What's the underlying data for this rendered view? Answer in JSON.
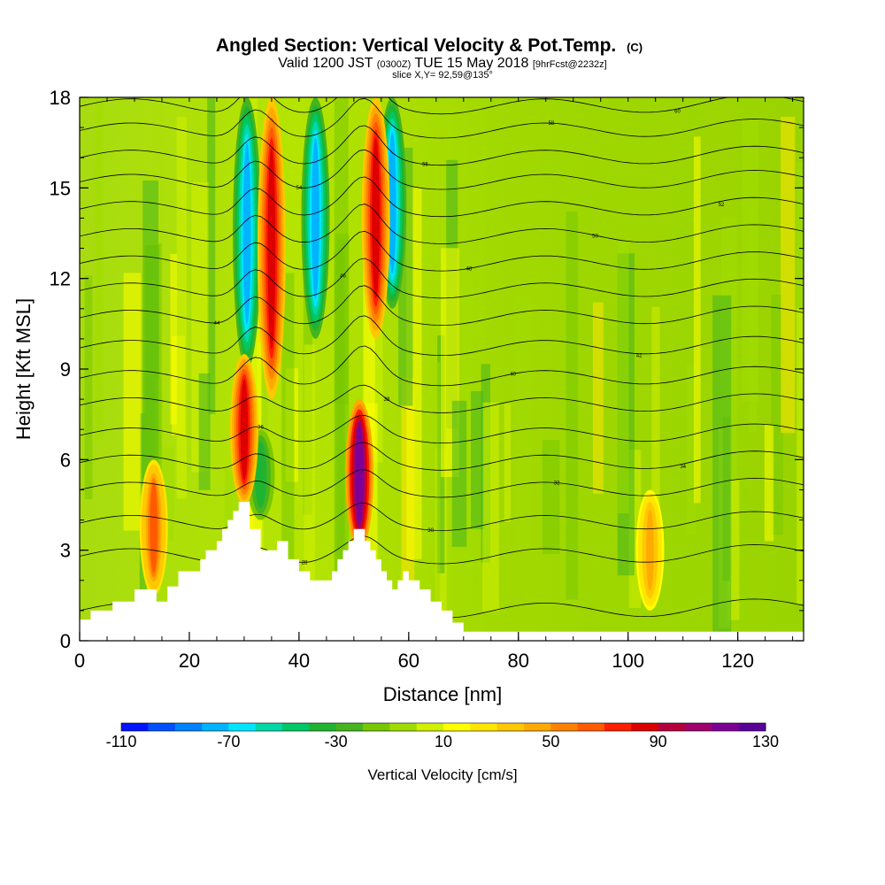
{
  "title": {
    "main": "Angled Section: Vertical Velocity & Pot.Temp.",
    "main_suffix": "(C)",
    "valid_prefix": "Valid 1200 JST",
    "valid_zulu": "(0300Z)",
    "valid_date": "TUE 15 May 2018",
    "valid_fcst": "[9hrFcst@2232z]",
    "slice": "slice X,Y= 92,59@135°"
  },
  "chart_data": {
    "type": "heatmap",
    "title": "Angled Section: Vertical Velocity & Pot.Temp.",
    "xlabel": "Distance [nm]",
    "ylabel": "Height [Kft MSL]",
    "xlim": [
      0,
      132
    ],
    "ylim": [
      0,
      18
    ],
    "xticks": [
      0,
      20,
      40,
      60,
      80,
      100,
      120
    ],
    "yticks": [
      0,
      3,
      6,
      9,
      12,
      15,
      18
    ],
    "colorbar": {
      "label": "Vertical Velocity [cm/s]",
      "min": -110,
      "max": 130,
      "tick_labels": [
        -110,
        -70,
        -30,
        10,
        50,
        90,
        130
      ],
      "colors": [
        "#0014ff",
        "#0050ff",
        "#0082ff",
        "#00b4ff",
        "#00e6ff",
        "#00d8a8",
        "#00c864",
        "#1eb432",
        "#46b41e",
        "#78c800",
        "#a0dc00",
        "#d2f000",
        "#ffff00",
        "#ffe600",
        "#ffc800",
        "#ffaa00",
        "#ff8200",
        "#ff5a00",
        "#ff1e00",
        "#dc0000",
        "#b4003c",
        "#a0006e",
        "#7d0096",
        "#5a009b"
      ]
    },
    "updrafts": [
      {
        "x": 13.5,
        "zmin": 1.5,
        "zmax": 6.0,
        "w": 60
      },
      {
        "x": 30.0,
        "zmin": 4.5,
        "zmax": 9.5,
        "w": 80
      },
      {
        "x": 35.0,
        "zmin": 8.0,
        "zmax": 18.0,
        "w": 85
      },
      {
        "x": 51.0,
        "zmin": 3.0,
        "zmax": 8.0,
        "w": 115
      },
      {
        "x": 54.0,
        "zmin": 10.0,
        "zmax": 18.0,
        "w": 85
      },
      {
        "x": 104.0,
        "zmin": 1.0,
        "zmax": 5.0,
        "w": 40
      }
    ],
    "downdrafts": [
      {
        "x": 30.5,
        "zmin": 9.0,
        "zmax": 18.0,
        "w": -80
      },
      {
        "x": 33.0,
        "zmin": 4.0,
        "zmax": 7.0,
        "w": -35
      },
      {
        "x": 43.0,
        "zmin": 10.0,
        "zmax": 18.0,
        "w": -75
      },
      {
        "x": 57.0,
        "zmin": 11.0,
        "zmax": 18.0,
        "w": -80
      }
    ],
    "terrain": {
      "x": [
        0,
        1,
        2,
        5,
        6,
        9,
        10,
        13,
        14,
        15,
        16,
        18,
        22,
        23,
        25,
        26,
        27,
        28,
        29,
        30,
        31,
        33,
        34,
        36,
        38,
        40,
        42,
        44,
        46,
        47,
        48,
        49,
        50,
        51,
        52,
        53,
        54,
        55,
        56,
        57,
        58,
        59,
        60,
        62,
        64,
        66,
        68,
        70,
        72,
        132
      ],
      "z": [
        0.7,
        0.7,
        1.0,
        1.0,
        1.3,
        1.3,
        1.7,
        1.7,
        1.3,
        1.3,
        1.8,
        2.3,
        2.7,
        3.0,
        3.3,
        3.7,
        4.0,
        4.3,
        4.6,
        4.6,
        3.7,
        3.0,
        3.0,
        3.3,
        2.7,
        2.3,
        2.0,
        2.0,
        2.3,
        2.7,
        3.0,
        3.3,
        3.7,
        3.7,
        3.3,
        3.0,
        2.7,
        2.3,
        2.0,
        1.7,
        2.0,
        2.3,
        2.0,
        1.7,
        1.3,
        1.0,
        0.6,
        0.3,
        0.3,
        0.3
      ]
    },
    "theta_contours": [
      {
        "label": "26",
        "base": 1.0
      },
      {
        "label": "28",
        "base": 2.8
      },
      {
        "label": "30",
        "base": 3.9
      },
      {
        "label": "32",
        "base": 5.0
      },
      {
        "label": "34",
        "base": 5.9
      },
      {
        "label": "36",
        "base": 6.8
      },
      {
        "label": "38",
        "base": 7.8
      },
      {
        "label": "40",
        "base": 8.7
      },
      {
        "label": "42",
        "base": 9.7
      },
      {
        "label": "44",
        "base": 10.7
      },
      {
        "label": "46",
        "base": 11.6
      },
      {
        "label": "48",
        "base": 12.5
      },
      {
        "label": "50",
        "base": 13.4
      },
      {
        "label": "52",
        "base": 14.3
      },
      {
        "label": "54",
        "base": 15.2
      },
      {
        "label": "56",
        "base": 16.0
      },
      {
        "label": "58",
        "base": 16.9
      },
      {
        "label": "60",
        "base": 17.7
      }
    ]
  }
}
